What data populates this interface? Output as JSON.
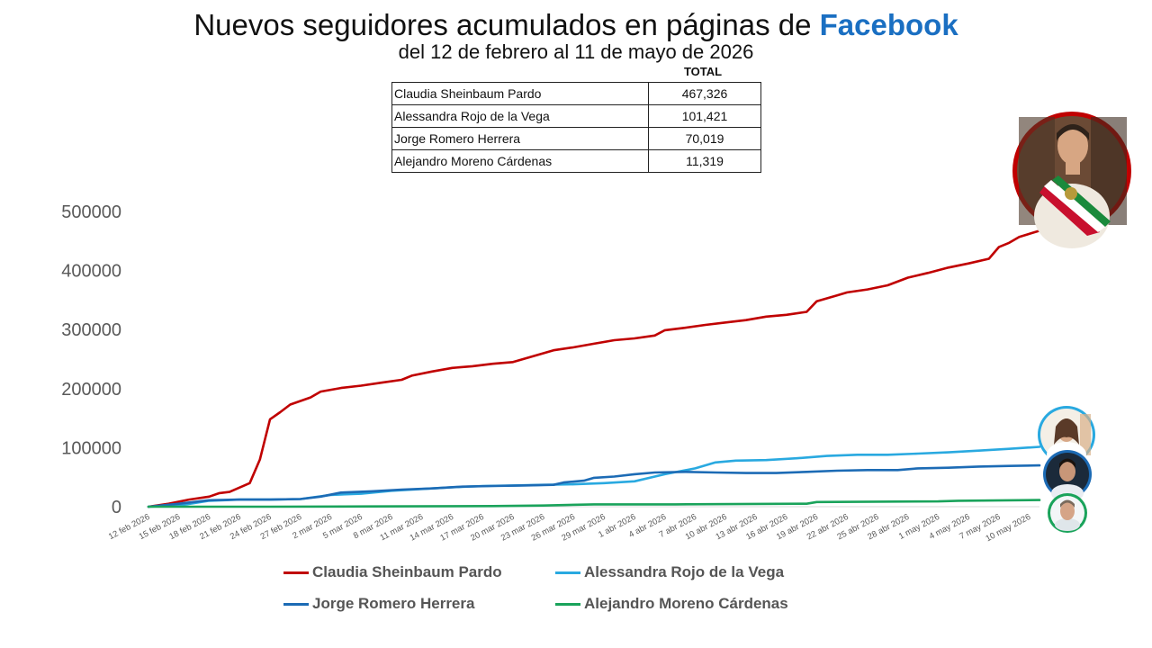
{
  "header": {
    "title_prefix": "Nuevos seguidores acumulados en páginas de ",
    "title_brand": "Facebook",
    "subtitle": "del 12 de febrero al 11 de mayo de 2026"
  },
  "table": {
    "header": "TOTAL",
    "rows": [
      {
        "name": "Claudia Sheinbaum Pardo",
        "value": "467,326"
      },
      {
        "name": "Alessandra Rojo de la Vega",
        "value": "101,421"
      },
      {
        "name": "Jorge Romero Herrera",
        "value": "70,019"
      },
      {
        "name": "Alejandro Moreno Cárdenas",
        "value": "11,319"
      }
    ]
  },
  "chart_data": {
    "type": "line",
    "title": "Nuevos seguidores acumulados en páginas de Facebook",
    "subtitle": "del 12 de febrero al 11 de mayo de 2026",
    "ylim": [
      0,
      500000
    ],
    "y_ticks": [
      "0",
      "100000",
      "200000",
      "300000",
      "400000",
      "500000"
    ],
    "x_tick_labels": [
      "12 feb 2026",
      "15 feb 2026",
      "18 feb 2026",
      "21 feb 2026",
      "24 feb 2026",
      "27 feb 2026",
      "2 mar 2026",
      "5 mar 2026",
      "8 mar 2026",
      "11 mar 2026",
      "14 mar 2026",
      "17 mar 2026",
      "20 mar 2026",
      "23 mar 2026",
      "26 mar 2026",
      "29 mar 2026",
      "1 abr 2026",
      "4 abr 2026",
      "7 abr 2026",
      "10 abr 2026",
      "13 abr 2026",
      "16 abr 2026",
      "19 abr 2026",
      "22 abr 2026",
      "25 abr 2026",
      "28 abr 2026",
      "1 may 2026",
      "4 may 2026",
      "7 may 2026",
      "10 may 2026"
    ],
    "legend_position": "bottom",
    "grid": false,
    "series": [
      {
        "name": "Claudia Sheinbaum Pardo",
        "color": "#c00000",
        "points": [
          [
            "12 feb 2026",
            0
          ],
          [
            "14 feb 2026",
            5000
          ],
          [
            "16 feb 2026",
            12000
          ],
          [
            "18 feb 2026",
            17000
          ],
          [
            "19 feb 2026",
            23000
          ],
          [
            "20 feb 2026",
            25000
          ],
          [
            "22 feb 2026",
            40000
          ],
          [
            "23 feb 2026",
            80000
          ],
          [
            "24 feb 2026",
            148000
          ],
          [
            "25 feb 2026",
            160000
          ],
          [
            "26 feb 2026",
            173000
          ],
          [
            "28 feb 2026",
            185000
          ],
          [
            "1 mar 2026",
            195000
          ],
          [
            "3 mar 2026",
            201000
          ],
          [
            "5 mar 2026",
            205000
          ],
          [
            "7 mar 2026",
            210000
          ],
          [
            "9 mar 2026",
            215000
          ],
          [
            "10 mar 2026",
            222000
          ],
          [
            "12 mar 2026",
            229000
          ],
          [
            "14 mar 2026",
            235000
          ],
          [
            "16 mar 2026",
            238000
          ],
          [
            "18 mar 2026",
            242000
          ],
          [
            "20 mar 2026",
            245000
          ],
          [
            "22 mar 2026",
            255000
          ],
          [
            "24 mar 2026",
            265000
          ],
          [
            "26 mar 2026",
            270000
          ],
          [
            "28 mar 2026",
            276000
          ],
          [
            "30 mar 2026",
            282000
          ],
          [
            "1 abr 2026",
            285000
          ],
          [
            "3 abr 2026",
            290000
          ],
          [
            "4 abr 2026",
            299000
          ],
          [
            "6 abr 2026",
            303000
          ],
          [
            "8 abr 2026",
            308000
          ],
          [
            "10 abr 2026",
            312000
          ],
          [
            "12 abr 2026",
            316000
          ],
          [
            "14 abr 2026",
            322000
          ],
          [
            "16 abr 2026",
            325000
          ],
          [
            "18 abr 2026",
            330000
          ],
          [
            "19 abr 2026",
            348000
          ],
          [
            "21 abr 2026",
            358000
          ],
          [
            "22 abr 2026",
            363000
          ],
          [
            "24 abr 2026",
            368000
          ],
          [
            "26 abr 2026",
            375000
          ],
          [
            "28 abr 2026",
            388000
          ],
          [
            "30 abr 2026",
            396000
          ],
          [
            "2 may 2026",
            405000
          ],
          [
            "4 may 2026",
            412000
          ],
          [
            "6 may 2026",
            420000
          ],
          [
            "7 may 2026",
            440000
          ],
          [
            "8 may 2026",
            447000
          ],
          [
            "9 may 2026",
            457000
          ],
          [
            "11 may 2026",
            467326
          ]
        ]
      },
      {
        "name": "Alessandra Rojo de la Vega",
        "color": "#29a9e0",
        "points": [
          [
            "12 feb 2026",
            0
          ],
          [
            "15 feb 2026",
            2000
          ],
          [
            "18 feb 2026",
            10000
          ],
          [
            "21 feb 2026",
            12000
          ],
          [
            "24 feb 2026",
            12000
          ],
          [
            "27 feb 2026",
            13000
          ],
          [
            "2 mar 2026",
            20000
          ],
          [
            "5 mar 2026",
            22000
          ],
          [
            "8 mar 2026",
            27000
          ],
          [
            "11 mar 2026",
            30000
          ],
          [
            "14 mar 2026",
            33000
          ],
          [
            "17 mar 2026",
            35000
          ],
          [
            "20 mar 2026",
            36000
          ],
          [
            "23 mar 2026",
            37000
          ],
          [
            "26 mar 2026",
            38000
          ],
          [
            "29 mar 2026",
            40000
          ],
          [
            "1 abr 2026",
            43000
          ],
          [
            "4 abr 2026",
            55000
          ],
          [
            "7 abr 2026",
            65000
          ],
          [
            "9 abr 2026",
            75000
          ],
          [
            "11 abr 2026",
            78000
          ],
          [
            "14 abr 2026",
            79000
          ],
          [
            "17 abr 2026",
            82000
          ],
          [
            "20 abr 2026",
            86000
          ],
          [
            "23 abr 2026",
            88000
          ],
          [
            "26 abr 2026",
            88000
          ],
          [
            "29 abr 2026",
            90000
          ],
          [
            "2 may 2026",
            92000
          ],
          [
            "5 may 2026",
            95000
          ],
          [
            "8 may 2026",
            98000
          ],
          [
            "11 may 2026",
            101421
          ]
        ]
      },
      {
        "name": "Jorge Romero Herrera",
        "color": "#1c6bb5",
        "points": [
          [
            "12 feb 2026",
            0
          ],
          [
            "15 feb 2026",
            5000
          ],
          [
            "18 feb 2026",
            11000
          ],
          [
            "21 feb 2026",
            12000
          ],
          [
            "24 feb 2026",
            12000
          ],
          [
            "27 feb 2026",
            13000
          ],
          [
            "1 mar 2026",
            17000
          ],
          [
            "3 mar 2026",
            24000
          ],
          [
            "6 mar 2026",
            26000
          ],
          [
            "9 mar 2026",
            29000
          ],
          [
            "12 mar 2026",
            31000
          ],
          [
            "15 mar 2026",
            34000
          ],
          [
            "18 mar 2026",
            35000
          ],
          [
            "21 mar 2026",
            36000
          ],
          [
            "24 mar 2026",
            37000
          ],
          [
            "25 mar 2026",
            41000
          ],
          [
            "27 mar 2026",
            44000
          ],
          [
            "28 mar 2026",
            49000
          ],
          [
            "30 mar 2026",
            51000
          ],
          [
            "1 abr 2026",
            55000
          ],
          [
            "3 abr 2026",
            58000
          ],
          [
            "6 abr 2026",
            59000
          ],
          [
            "9 abr 2026",
            58000
          ],
          [
            "12 abr 2026",
            57000
          ],
          [
            "15 abr 2026",
            57000
          ],
          [
            "18 abr 2026",
            59000
          ],
          [
            "21 abr 2026",
            61000
          ],
          [
            "24 abr 2026",
            62000
          ],
          [
            "27 abr 2026",
            62000
          ],
          [
            "29 abr 2026",
            65000
          ],
          [
            "2 may 2026",
            66000
          ],
          [
            "5 may 2026",
            68000
          ],
          [
            "8 may 2026",
            69000
          ],
          [
            "11 may 2026",
            70019
          ]
        ]
      },
      {
        "name": "Alejandro Moreno Cárdenas",
        "color": "#1aa35b",
        "points": [
          [
            "12 feb 2026",
            0
          ],
          [
            "24 feb 2026",
            0
          ],
          [
            "6 mar 2026",
            500
          ],
          [
            "18 mar 2026",
            1000
          ],
          [
            "23 mar 2026",
            2000
          ],
          [
            "28 mar 2026",
            4000
          ],
          [
            "5 abr 2026",
            4000
          ],
          [
            "18 abr 2026",
            5000
          ],
          [
            "19 abr 2026",
            8000
          ],
          [
            "1 may 2026",
            9000
          ],
          [
            "3 may 2026",
            10000
          ],
          [
            "11 may 2026",
            11319
          ]
        ]
      }
    ]
  }
}
